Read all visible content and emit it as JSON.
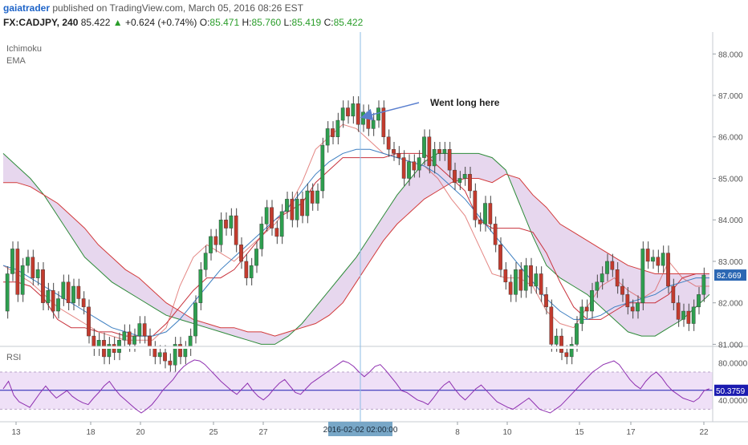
{
  "header": {
    "user": "gaiatrader",
    "published": "published on TradingView.com, March 05, 2016 08:26 EST",
    "symbol": "FX:CADJPY, 240",
    "last": "85.422",
    "change": "+0.624 (+0.74%)",
    "open_label": "O:",
    "open": "85.471",
    "high_label": "H:",
    "high": "85.760",
    "low_label": "L:",
    "low": "85.419",
    "close_label": "C:",
    "close": "85.422"
  },
  "main_pane": {
    "indicators": [
      "Ichimoku",
      "EMA"
    ],
    "annotation": "Went long here",
    "price_tag": "82.669"
  },
  "rsi_pane": {
    "label": "RSI",
    "value_tag": "50.3759"
  },
  "crosshair_label": "2016-02-02 02:00:00",
  "colors": {
    "bull": "#2e9e4f",
    "bear": "#c23b2e",
    "cloud": "#e4d3ec",
    "span_a": "#2e8b3a",
    "span_b": "#d23a3a",
    "kijun": "#c8323c",
    "ema": "#3d7fc1",
    "rsi": "#8e2fb0",
    "rsi_band": "#efe0f7",
    "crosshair": "#8cbde6",
    "annotation_arrow": "#5a7fcf"
  },
  "chart_data": {
    "type": "candlestick",
    "price_axis": {
      "ticks": [
        "88.000",
        "87.000",
        "86.000",
        "85.000",
        "84.000",
        "83.000",
        "82.000",
        "81.000"
      ],
      "range": [
        80.95,
        88.45
      ]
    },
    "rsi_axis": {
      "ticks": [
        "80.0000",
        "40.0000"
      ],
      "range": [
        20,
        95
      ]
    },
    "x_ticks": [
      "13",
      "18",
      "20",
      "25",
      "27",
      "8",
      "10",
      "15",
      "17",
      "22"
    ],
    "candles": [
      [
        81.8,
        82.7
      ],
      [
        82.7,
        83.3
      ],
      [
        83.3,
        82.2
      ],
      [
        82.2,
        82.9
      ],
      [
        82.9,
        83.1
      ],
      [
        83.1,
        82.6
      ],
      [
        82.6,
        82.8
      ],
      [
        82.8,
        82.0
      ],
      [
        82.0,
        82.3
      ],
      [
        82.3,
        81.8
      ],
      [
        81.8,
        82.1
      ],
      [
        82.1,
        82.5
      ],
      [
        82.5,
        82.0
      ],
      [
        82.0,
        82.4
      ],
      [
        82.4,
        82.1
      ],
      [
        82.1,
        81.9
      ],
      [
        81.9,
        81.2
      ],
      [
        81.2,
        80.9
      ],
      [
        80.9,
        81.1
      ],
      [
        81.1,
        80.7
      ],
      [
        80.7,
        81.0
      ],
      [
        81.0,
        80.8
      ],
      [
        80.8,
        81.1
      ],
      [
        81.1,
        81.3
      ],
      [
        81.3,
        81.0
      ],
      [
        81.0,
        81.2
      ],
      [
        81.2,
        81.5
      ],
      [
        81.5,
        81.2
      ],
      [
        81.2,
        80.9
      ],
      [
        80.9,
        80.7
      ],
      [
        80.7,
        80.8
      ],
      [
        80.8,
        80.6
      ],
      [
        80.6,
        80.5
      ],
      [
        80.5,
        81.0
      ],
      [
        81.0,
        80.7
      ],
      [
        80.7,
        80.9
      ],
      [
        80.9,
        81.2
      ],
      [
        81.2,
        82.0
      ],
      [
        82.0,
        82.8
      ],
      [
        82.8,
        83.2
      ],
      [
        83.2,
        83.6
      ],
      [
        83.6,
        83.4
      ],
      [
        83.4,
        84.0
      ],
      [
        84.0,
        83.8
      ],
      [
        83.8,
        84.1
      ],
      [
        84.1,
        83.4
      ],
      [
        83.4,
        83.0
      ],
      [
        83.0,
        82.6
      ],
      [
        82.6,
        82.9
      ],
      [
        82.9,
        83.3
      ],
      [
        83.3,
        83.9
      ],
      [
        83.9,
        84.3
      ],
      [
        84.3,
        83.8
      ],
      [
        83.8,
        83.6
      ],
      [
        83.6,
        84.2
      ],
      [
        84.2,
        84.5
      ],
      [
        84.5,
        84.0
      ],
      [
        84.0,
        84.5
      ],
      [
        84.5,
        84.1
      ],
      [
        84.1,
        84.7
      ],
      [
        84.7,
        84.4
      ],
      [
        84.4,
        84.7
      ],
      [
        84.7,
        85.8
      ],
      [
        85.8,
        86.2
      ],
      [
        86.2,
        86.0
      ],
      [
        86.0,
        86.4
      ],
      [
        86.4,
        86.7
      ],
      [
        86.7,
        86.5
      ],
      [
        86.5,
        86.8
      ],
      [
        86.8,
        86.3
      ],
      [
        86.3,
        86.6
      ],
      [
        86.6,
        86.2
      ],
      [
        86.2,
        86.4
      ],
      [
        86.4,
        86.7
      ],
      [
        86.7,
        86.0
      ],
      [
        86.0,
        85.7
      ],
      [
        85.7,
        85.6
      ],
      [
        85.6,
        85.5
      ],
      [
        85.5,
        85.0
      ],
      [
        85.0,
        85.4
      ],
      [
        85.4,
        85.2
      ],
      [
        85.2,
        85.5
      ],
      [
        85.5,
        86.0
      ],
      [
        86.0,
        85.3
      ],
      [
        85.3,
        85.7
      ],
      [
        85.7,
        85.6
      ],
      [
        85.6,
        85.7
      ],
      [
        85.7,
        85.2
      ],
      [
        85.2,
        84.9
      ],
      [
        84.9,
        85.0
      ],
      [
        85.0,
        85.1
      ],
      [
        85.1,
        84.7
      ],
      [
        84.7,
        84.0
      ],
      [
        84.0,
        83.9
      ],
      [
        83.9,
        84.4
      ],
      [
        84.4,
        83.9
      ],
      [
        83.9,
        83.4
      ],
      [
        83.4,
        82.8
      ],
      [
        82.8,
        82.5
      ],
      [
        82.5,
        82.2
      ],
      [
        82.2,
        82.8
      ],
      [
        82.8,
        82.3
      ],
      [
        82.3,
        82.9
      ],
      [
        82.9,
        82.4
      ],
      [
        82.4,
        82.7
      ],
      [
        82.7,
        82.2
      ],
      [
        82.2,
        81.9
      ],
      [
        81.9,
        81.0
      ],
      [
        81.0,
        81.2
      ],
      [
        81.2,
        80.8
      ],
      [
        80.8,
        80.7
      ],
      [
        80.7,
        81.0
      ],
      [
        81.0,
        81.5
      ],
      [
        81.5,
        81.9
      ],
      [
        81.9,
        81.8
      ],
      [
        81.8,
        82.3
      ],
      [
        82.3,
        82.5
      ],
      [
        82.5,
        82.7
      ],
      [
        82.7,
        83.0
      ],
      [
        83.0,
        82.8
      ],
      [
        82.8,
        82.4
      ],
      [
        82.4,
        82.2
      ],
      [
        82.2,
        81.9
      ],
      [
        81.9,
        81.8
      ],
      [
        81.8,
        82.0
      ],
      [
        82.0,
        83.3
      ],
      [
        83.3,
        83.0
      ],
      [
        83.0,
        83.1
      ],
      [
        83.1,
        82.9
      ],
      [
        82.9,
        83.2
      ],
      [
        83.2,
        82.4
      ],
      [
        82.4,
        82.0
      ],
      [
        82.0,
        81.6
      ],
      [
        81.6,
        81.8
      ],
      [
        81.8,
        81.5
      ],
      [
        81.5,
        81.9
      ],
      [
        81.9,
        82.2
      ],
      [
        82.2,
        82.669
      ]
    ],
    "tenkan": [
      82.9,
      82.7,
      82.5,
      82.2,
      81.9,
      81.7,
      81.5,
      81.3,
      81.2,
      81.1,
      81.1,
      81.1,
      81.4,
      82.4,
      83.1,
      83.4,
      83.2,
      83.0,
      83.3,
      83.6,
      83.9,
      84.3,
      84.9,
      85.7,
      86.0,
      86.3,
      86.2,
      85.9,
      85.6,
      85.5,
      85.4,
      85.3,
      85.0,
      84.5,
      84.1,
      83.4,
      82.7,
      82.6,
      82.6,
      82.4,
      81.8,
      81.5,
      81.4,
      81.9,
      82.4,
      82.6,
      82.3,
      82.1,
      82.3,
      83.0,
      82.6,
      82.4,
      82.4
    ],
    "kijun": [
      82.5,
      82.5,
      82.4,
      82.1,
      81.6,
      81.4,
      81.4,
      81.3,
      81.3,
      81.2,
      81.2,
      81.2,
      81.5,
      81.9,
      82.3,
      82.6,
      82.6,
      82.8,
      83.2,
      83.6,
      84.0,
      84.2,
      84.4,
      84.9,
      85.2,
      85.5,
      85.5,
      85.5,
      85.5,
      85.6,
      85.6,
      85.6,
      85.3,
      85.0,
      84.7,
      84.0,
      83.8,
      83.8,
      83.8,
      83.7,
      83.2,
      82.5,
      81.9,
      81.6,
      81.6,
      81.8,
      82.0,
      82.0,
      82.0,
      82.2,
      82.6,
      82.7,
      82.7
    ],
    "span_a": [
      85.6,
      85.3,
      85.0,
      84.6,
      84.1,
      83.6,
      83.1,
      82.8,
      82.5,
      82.3,
      82.1,
      81.9,
      81.7,
      81.6,
      81.5,
      81.4,
      81.3,
      81.2,
      81.1,
      81.0,
      81.0,
      81.2,
      81.5,
      81.9,
      82.3,
      82.7,
      83.1,
      83.6,
      84.1,
      84.6,
      85.0,
      85.4,
      85.6,
      85.6,
      85.6,
      85.6,
      85.5,
      85.2,
      84.4,
      83.6,
      82.9,
      82.6,
      82.4,
      82.2,
      81.9,
      81.6,
      81.3,
      81.2,
      81.2,
      81.4,
      81.6,
      81.9,
      82.2
    ],
    "span_b": [
      84.9,
      84.9,
      84.8,
      84.6,
      84.4,
      84.1,
      83.8,
      83.4,
      83.1,
      82.8,
      82.6,
      82.3,
      82.0,
      81.8,
      81.6,
      81.5,
      81.4,
      81.4,
      81.3,
      81.3,
      81.2,
      81.3,
      81.4,
      81.5,
      81.7,
      82.0,
      82.5,
      83.0,
      83.5,
      83.9,
      84.2,
      84.5,
      84.7,
      84.9,
      85.0,
      85.0,
      84.9,
      85.1,
      85.0,
      84.6,
      84.3,
      83.9,
      83.7,
      83.5,
      83.3,
      83.1,
      82.9,
      82.8,
      82.7,
      82.7,
      82.7,
      82.7,
      82.7
    ],
    "ema": [
      82.9,
      82.8,
      82.6,
      82.4,
      82.2,
      82.0,
      81.8,
      81.6,
      81.4,
      81.3,
      81.2,
      81.2,
      81.3,
      81.6,
      82.0,
      82.4,
      82.8,
      83.1,
      83.4,
      83.7,
      84.0,
      84.3,
      84.7,
      85.1,
      85.4,
      85.6,
      85.7,
      85.7,
      85.6,
      85.5,
      85.4,
      85.3,
      85.1,
      84.8,
      84.5,
      84.1,
      83.7,
      83.3,
      82.9,
      82.5,
      82.1,
      81.8,
      81.6,
      81.6,
      81.7,
      81.9,
      82.0,
      82.1,
      82.2,
      82.4,
      82.5,
      82.6,
      82.6
    ],
    "rsi": [
      52,
      60,
      45,
      38,
      35,
      32,
      40,
      48,
      55,
      48,
      42,
      46,
      50,
      44,
      40,
      37,
      35,
      42,
      48,
      55,
      60,
      52,
      45,
      40,
      35,
      30,
      26,
      30,
      35,
      42,
      50,
      56,
      62,
      70,
      76,
      80,
      83,
      82,
      78,
      72,
      66,
      60,
      55,
      50,
      46,
      52,
      58,
      50,
      44,
      40,
      45,
      52,
      58,
      62,
      55,
      48,
      46,
      52,
      58,
      62,
      66,
      70,
      74,
      78,
      82,
      80,
      76,
      70,
      65,
      70,
      76,
      78,
      72,
      65,
      58,
      50,
      48,
      44,
      40,
      38,
      35,
      42,
      50,
      56,
      60,
      52,
      45,
      40,
      46,
      52,
      56,
      50,
      44,
      38,
      35,
      32,
      30,
      34,
      38,
      42,
      36,
      30,
      28,
      26,
      30,
      34,
      40,
      46,
      52,
      58,
      64,
      70,
      74,
      78,
      80,
      82,
      78,
      70,
      62,
      56,
      52,
      60,
      66,
      70,
      64,
      56,
      50,
      46,
      42,
      40,
      38,
      42,
      50,
      52
    ]
  }
}
